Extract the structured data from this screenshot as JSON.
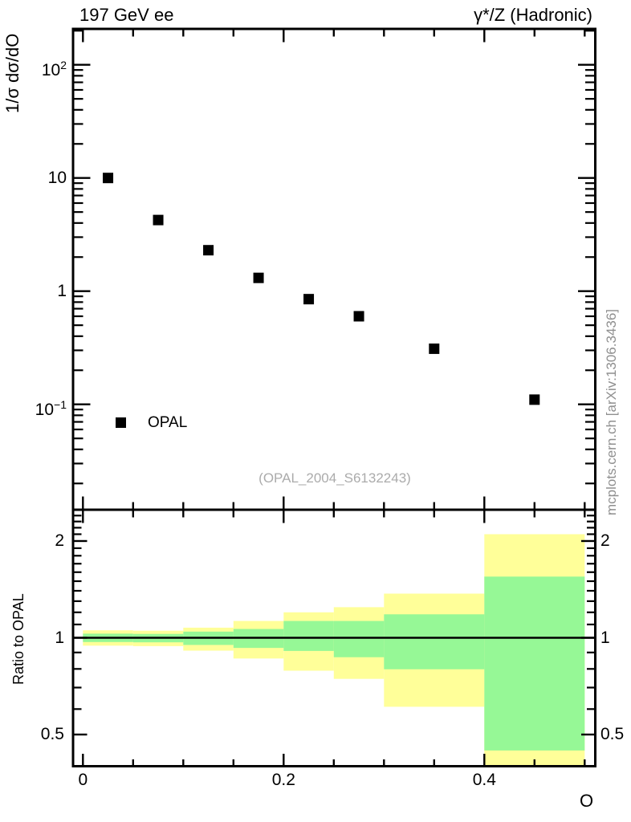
{
  "header": {
    "left_title": "197 GeV ee",
    "right_title": "γ*/Z (Hadronic)"
  },
  "main_panel": {
    "y_axis_title": "1/σ dσ/dO",
    "y_tick_labels": [
      {
        "mantissa": "10",
        "exponent": "2",
        "value": 100
      },
      {
        "mantissa": "10",
        "exponent": "",
        "value": 10
      },
      {
        "mantissa": "1",
        "exponent": "",
        "value": 1
      },
      {
        "mantissa": "10",
        "exponent": "−1",
        "value": 0.1
      }
    ],
    "legend": {
      "label": "OPAL",
      "marker": "filled-square"
    },
    "watermark": "(OPAL_2004_S6132243)"
  },
  "ratio_panel": {
    "y_axis_title": "Ratio to OPAL",
    "y_tick_labels": [
      {
        "text": "2",
        "value": 2
      },
      {
        "text": "1",
        "value": 1
      },
      {
        "text": "0.5",
        "value": 0.5
      }
    ],
    "x_tick_labels": [
      {
        "text": "0",
        "value": 0
      },
      {
        "text": "0.2",
        "value": 0.2
      },
      {
        "text": "0.4",
        "value": 0.4
      }
    ],
    "x_axis_title": "O",
    "reference_line": 1
  },
  "side_text": "mcplots.cern.ch [arXiv:1306.3436]",
  "colors": {
    "band_outer": "#ffff99",
    "band_inner": "#96f896",
    "marker": "#000000",
    "frame": "#000000",
    "watermark_gray": "#ababab",
    "side_text_gray": "#8f8f8f"
  },
  "chart_data": {
    "type": "scatter",
    "title_left": "197 GeV ee",
    "title_right": "γ*/Z (Hadronic)",
    "xlabel": "O",
    "ylabel_main": "1/σ dσ/dO",
    "ylabel_ratio": "Ratio to OPAL",
    "x_range": [
      0,
      0.5
    ],
    "main_y_scale": "log",
    "main_y_range": [
      0.012,
      210
    ],
    "ratio_y_scale": "log",
    "ratio_y_range": [
      0.4,
      2.45
    ],
    "x_minor_tick_step": 0.05,
    "x_major_ticks": [
      0,
      0.2,
      0.4
    ],
    "series": [
      {
        "name": "OPAL",
        "marker": "filled-square",
        "points": [
          [
            0.025,
            10.0
          ],
          [
            0.075,
            4.25
          ],
          [
            0.125,
            2.3
          ],
          [
            0.175,
            1.31
          ],
          [
            0.225,
            0.85
          ],
          [
            0.275,
            0.6
          ],
          [
            0.35,
            0.31
          ],
          [
            0.45,
            0.11
          ]
        ]
      }
    ],
    "ratio_bands": [
      {
        "x": [
          0.0,
          0.05
        ],
        "outer": [
          0.945,
          1.055
        ],
        "inner": [
          0.97,
          1.03
        ]
      },
      {
        "x": [
          0.05,
          0.1
        ],
        "outer": [
          0.942,
          1.052
        ],
        "inner": [
          0.968,
          1.028
        ]
      },
      {
        "x": [
          0.1,
          0.15
        ],
        "outer": [
          0.912,
          1.075
        ],
        "inner": [
          0.95,
          1.045
        ]
      },
      {
        "x": [
          0.15,
          0.2
        ],
        "outer": [
          0.862,
          1.128
        ],
        "inner": [
          0.93,
          1.065
        ]
      },
      {
        "x": [
          0.2,
          0.25
        ],
        "outer": [
          0.79,
          1.2
        ],
        "inner": [
          0.91,
          1.128
        ]
      },
      {
        "x": [
          0.25,
          0.3
        ],
        "outer": [
          0.745,
          1.245
        ],
        "inner": [
          0.87,
          1.128
        ]
      },
      {
        "x": [
          0.3,
          0.4
        ],
        "outer": [
          0.61,
          1.372
        ],
        "inner": [
          0.798,
          1.183
        ]
      },
      {
        "x": [
          0.4,
          0.5
        ],
        "outer": [
          0.4,
          2.1
        ],
        "inner": [
          0.446,
          1.55
        ]
      }
    ],
    "ratio_reference_line": 1,
    "grid": false,
    "legend_position": "lower-left-of-main-panel"
  }
}
